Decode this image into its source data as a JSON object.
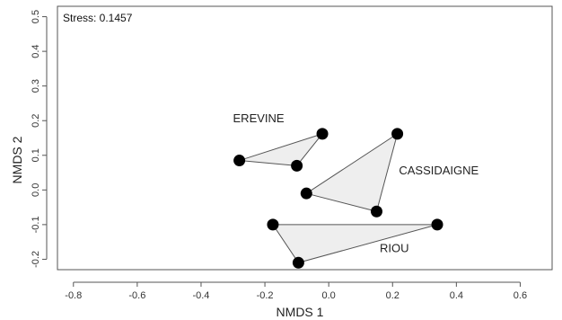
{
  "chart_data": {
    "type": "scatter",
    "xlabel": "NMDS 1",
    "ylabel": "NMDS 2",
    "xlim": [
      -0.85,
      0.7
    ],
    "ylim": [
      -0.23,
      0.53
    ],
    "xticks": [
      -0.8,
      -0.6,
      -0.4,
      -0.2,
      0.0,
      0.2,
      0.4,
      0.6
    ],
    "yticks": [
      -0.2,
      -0.1,
      0.0,
      0.1,
      0.2,
      0.3,
      0.4,
      0.5
    ],
    "xtick_labels": [
      "-0.8",
      "-0.6",
      "-0.4",
      "-0.2",
      "0.0",
      "0.2",
      "0.4",
      "0.6"
    ],
    "ytick_labels": [
      "-0.2",
      "-0.1",
      "0.0",
      "0.1",
      "0.2",
      "0.3",
      "0.4",
      "0.5"
    ],
    "annotation": "Stress: 0.1457",
    "grid": false,
    "groups": [
      {
        "name": "EREVINE",
        "points": [
          [
            -0.28,
            0.085
          ],
          [
            -0.1,
            0.07
          ],
          [
            -0.02,
            0.162
          ]
        ],
        "label_pos": [
          -0.3,
          0.195
        ]
      },
      {
        "name": "CASSIDAIGNE",
        "points": [
          [
            -0.07,
            -0.01
          ],
          [
            0.15,
            -0.062
          ],
          [
            0.215,
            0.162
          ]
        ],
        "label_pos": [
          0.22,
          0.045
        ]
      },
      {
        "name": "RIOU",
        "points": [
          [
            -0.175,
            -0.1
          ],
          [
            0.34,
            -0.1
          ],
          [
            -0.095,
            -0.21
          ]
        ],
        "label_pos": [
          0.16,
          -0.18
        ]
      }
    ]
  }
}
